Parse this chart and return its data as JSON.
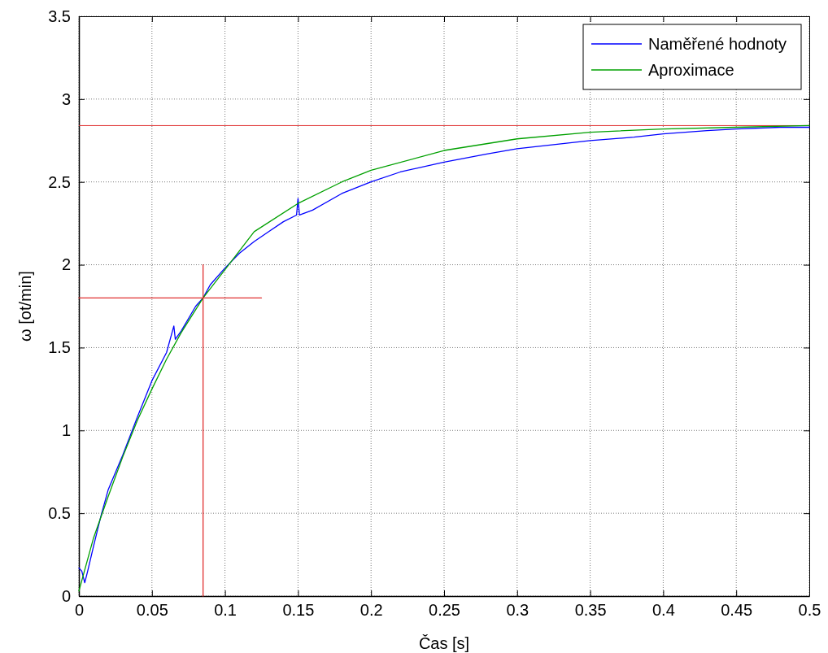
{
  "chart_data": {
    "type": "line",
    "xlabel": "Čas [s]",
    "ylabel": "ω [ot/min]",
    "xlim": [
      0,
      0.5
    ],
    "ylim": [
      0,
      3.5
    ],
    "xticks": [
      0,
      0.05,
      0.1,
      0.15,
      0.2,
      0.25,
      0.3,
      0.35,
      0.4,
      0.45,
      0.5
    ],
    "yticks": [
      0,
      0.5,
      1,
      1.5,
      2,
      2.5,
      3,
      3.5
    ],
    "grid": true,
    "legend": "top right",
    "line_style": "solid",
    "marker": "none",
    "series": [
      {
        "name": "Naměřené hodnoty",
        "color": "#0000ff",
        "x": [
          0,
          0.002,
          0.004,
          0.006,
          0.01,
          0.015,
          0.02,
          0.03,
          0.04,
          0.05,
          0.06,
          0.065,
          0.066,
          0.07,
          0.08,
          0.085,
          0.09,
          0.1,
          0.11,
          0.12,
          0.13,
          0.14,
          0.149,
          0.15,
          0.151,
          0.16,
          0.18,
          0.2,
          0.22,
          0.25,
          0.28,
          0.3,
          0.33,
          0.35,
          0.38,
          0.4,
          0.43,
          0.45,
          0.48,
          0.5
        ],
        "values": [
          0.17,
          0.15,
          0.08,
          0.15,
          0.3,
          0.48,
          0.64,
          0.85,
          1.08,
          1.3,
          1.47,
          1.63,
          1.55,
          1.6,
          1.75,
          1.8,
          1.88,
          1.98,
          2.07,
          2.14,
          2.2,
          2.26,
          2.3,
          2.4,
          2.3,
          2.33,
          2.43,
          2.5,
          2.56,
          2.62,
          2.67,
          2.7,
          2.73,
          2.75,
          2.77,
          2.79,
          2.81,
          2.82,
          2.83,
          2.83
        ]
      },
      {
        "name": "Aproximace",
        "color": "#00a000",
        "x": [
          0,
          0.01,
          0.02,
          0.03,
          0.04,
          0.05,
          0.06,
          0.07,
          0.085,
          0.1,
          0.12,
          0.15,
          0.18,
          0.2,
          0.25,
          0.3,
          0.35,
          0.4,
          0.45,
          0.5
        ],
        "values": [
          0.03,
          0.35,
          0.6,
          0.84,
          1.06,
          1.25,
          1.43,
          1.59,
          1.8,
          1.97,
          2.2,
          2.37,
          2.5,
          2.57,
          2.69,
          2.76,
          2.8,
          2.82,
          2.83,
          2.84
        ]
      },
      {
        "color": "#e03030",
        "x": [
          0,
          0.125
        ],
        "values": [
          1.8,
          1.8
        ]
      },
      {
        "color": "#e03030",
        "x": [
          0.085,
          0.085
        ],
        "values": [
          0,
          2
        ]
      }
    ],
    "ref_lines": [
      {
        "axis": "y",
        "value": 2.84,
        "color": "#e03030"
      }
    ]
  }
}
